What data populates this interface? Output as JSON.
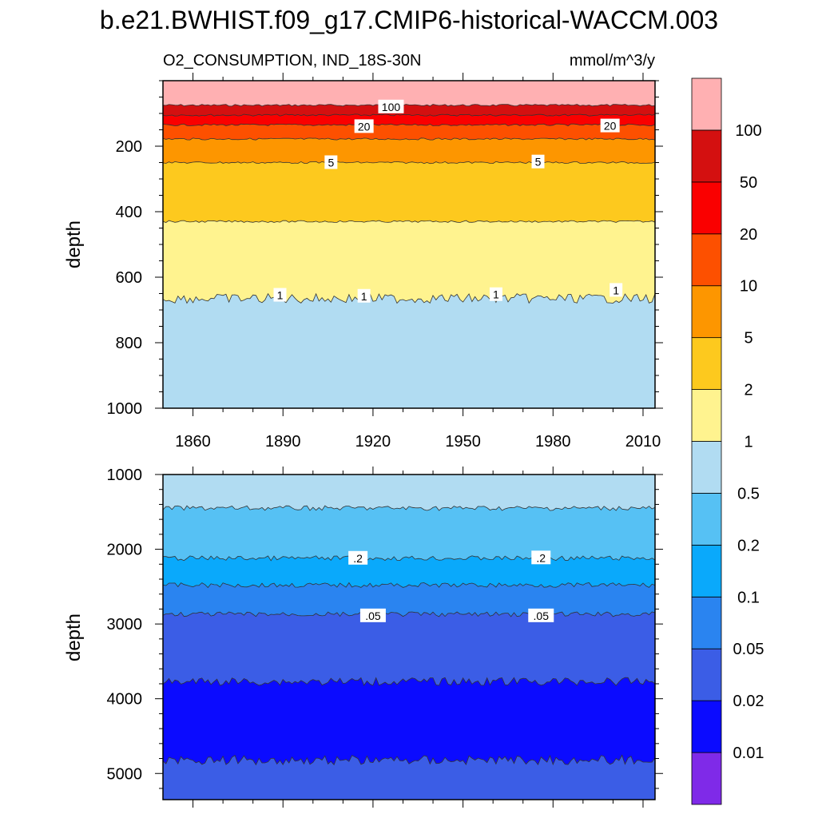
{
  "title": "b.e21.BWHIST.f09_g17.CMIP6-historical-WACCM.003",
  "chart_data": {
    "type": "heatmap",
    "variable": "O2_CONSUMPTION, IND_18S-30N",
    "units": "mmol/m^3/y",
    "colorbar": {
      "levels": [
        "0.01",
        "0.02",
        "0.05",
        "0.1",
        "0.2",
        "0.5",
        "1",
        "2",
        "5",
        "10",
        "20",
        "50",
        "100"
      ],
      "colors": [
        "#7f2ae8",
        "#0b0bff",
        "#3b5de6",
        "#2a84f0",
        "#0aa9fb",
        "#56c1f4",
        "#b1dcf2",
        "#fff38f",
        "#fdc91e",
        "#fd9600",
        "#fd5000",
        "#fa0000",
        "#d41010",
        "#ffb0b2"
      ]
    },
    "panels": [
      {
        "name": "upper",
        "ylabel": "depth",
        "ylim": [
          0,
          1000
        ],
        "y_axis": "inverted",
        "y_ticks": [
          200,
          400,
          600,
          800,
          1000
        ],
        "xlim": [
          1850,
          2014
        ],
        "x_ticks": [
          "1860",
          "1890",
          "1920",
          "1950",
          "1980",
          "2010"
        ],
        "bands": [
          {
            "from_depth": 0,
            "to_depth": 75,
            "class": "100"
          },
          {
            "from_depth": 75,
            "to_depth": 105,
            "class": "50"
          },
          {
            "from_depth": 105,
            "to_depth": 135,
            "class": "20"
          },
          {
            "from_depth": 135,
            "to_depth": 178,
            "class": "10"
          },
          {
            "from_depth": 178,
            "to_depth": 250,
            "class": "5"
          },
          {
            "from_depth": 250,
            "to_depth": 430,
            "class": "2"
          },
          {
            "from_depth": 430,
            "to_depth": 665,
            "class": "1"
          },
          {
            "from_depth": 665,
            "to_depth": 1000,
            "class": "0.5"
          }
        ],
        "contour_labels": [
          {
            "text": "100",
            "year": 1926,
            "depth": 80
          },
          {
            "text": "20",
            "year": 1917,
            "depth": 140
          },
          {
            "text": "20",
            "year": 1999,
            "depth": 138
          },
          {
            "text": "5",
            "year": 1906,
            "depth": 250
          },
          {
            "text": "5",
            "year": 1975,
            "depth": 248
          },
          {
            "text": "1",
            "year": 1889,
            "depth": 655
          },
          {
            "text": "1",
            "year": 1917,
            "depth": 658
          },
          {
            "text": "1",
            "year": 1961,
            "depth": 653
          },
          {
            "text": "1",
            "year": 2001,
            "depth": 640
          }
        ]
      },
      {
        "name": "lower",
        "ylabel": "depth",
        "ylim": [
          1000,
          5350
        ],
        "y_axis": "inverted",
        "y_ticks": [
          1000,
          2000,
          3000,
          4000,
          5000
        ],
        "xlim": [
          1850,
          2014
        ],
        "bands": [
          {
            "from_depth": 1000,
            "to_depth": 1450,
            "class": "0.5"
          },
          {
            "from_depth": 1450,
            "to_depth": 2120,
            "class": "0.2"
          },
          {
            "from_depth": 2120,
            "to_depth": 2480,
            "class": "0.1"
          },
          {
            "from_depth": 2480,
            "to_depth": 2870,
            "class": "0.05"
          },
          {
            "from_depth": 2870,
            "to_depth": 3770,
            "class": "0.02"
          },
          {
            "from_depth": 3770,
            "to_depth": 4820,
            "class": "0.01"
          },
          {
            "from_depth": 4820,
            "to_depth": 5350,
            "class": "0.02"
          }
        ],
        "contour_labels": [
          {
            "text": ".2",
            "year": 1915,
            "depth": 2120
          },
          {
            "text": ".2",
            "year": 1976,
            "depth": 2115
          },
          {
            "text": ".05",
            "year": 1920,
            "depth": 2890
          },
          {
            "text": ".05",
            "year": 1976,
            "depth": 2890
          }
        ]
      }
    ]
  }
}
